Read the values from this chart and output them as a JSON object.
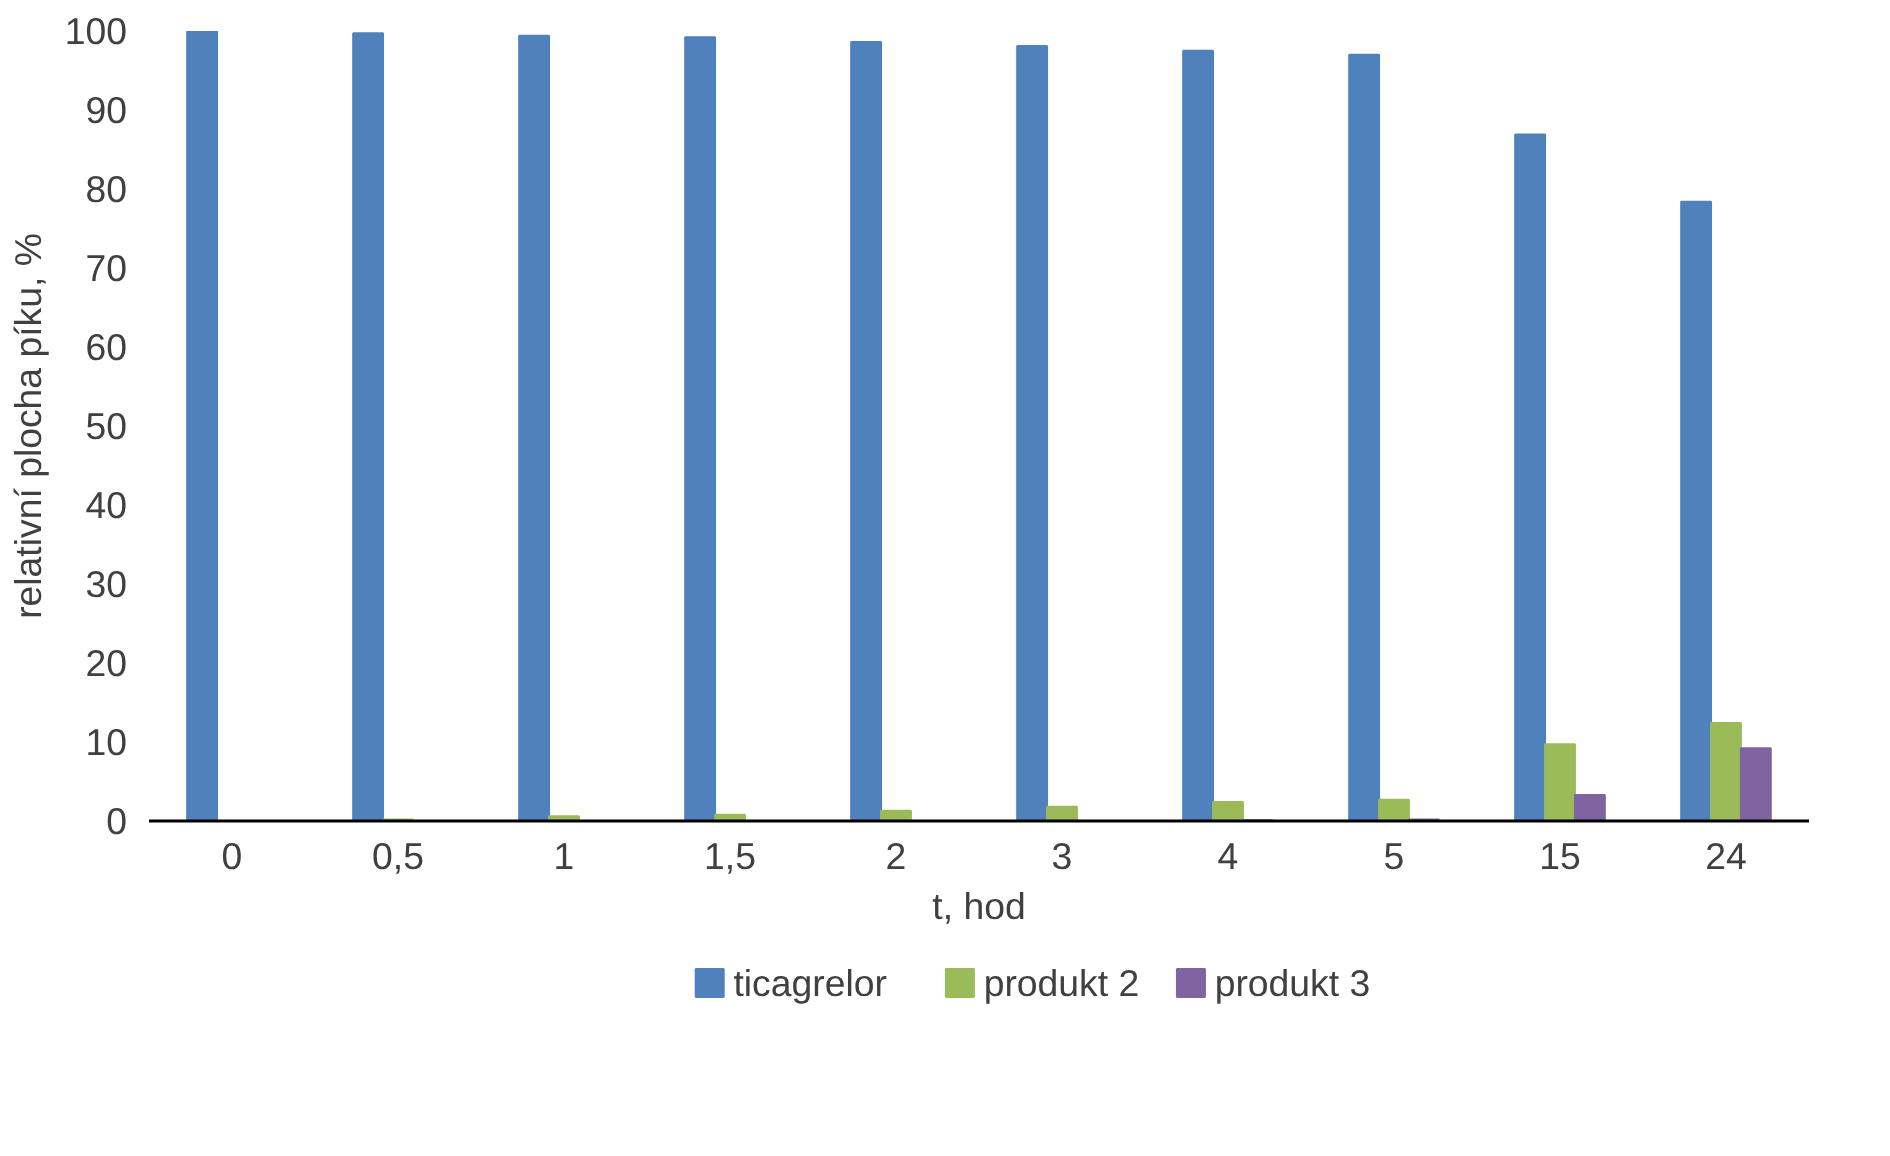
{
  "chart_data": {
    "type": "bar",
    "xlabel": "t, hod",
    "ylabel": "relativní plocha píku, %",
    "categories": [
      "0",
      "0,5",
      "1",
      "1,5",
      "2",
      "3",
      "4",
      "5",
      "15",
      "24"
    ],
    "series": [
      {
        "name": "ticagrelor",
        "color": "#4f81bd",
        "values": [
          100,
          99.7,
          99.4,
          99.2,
          98.6,
          98.1,
          97.5,
          97.0,
          86.9,
          78.4
        ]
      },
      {
        "name": "produkt 2",
        "color": "#9bbb59",
        "values": [
          0,
          0.2,
          0.6,
          0.8,
          1.3,
          1.8,
          2.4,
          2.7,
          9.7,
          12.4
        ]
      },
      {
        "name": "produkt 3",
        "color": "#8064a2",
        "values": [
          0,
          0,
          0,
          0,
          0,
          0,
          0.1,
          0.2,
          3.3,
          9.2
        ]
      }
    ],
    "ylim": [
      0,
      100
    ],
    "yticks": [
      0,
      10,
      20,
      30,
      40,
      50,
      60,
      70,
      80,
      90,
      100
    ],
    "grid": false,
    "legend": "bottom"
  }
}
